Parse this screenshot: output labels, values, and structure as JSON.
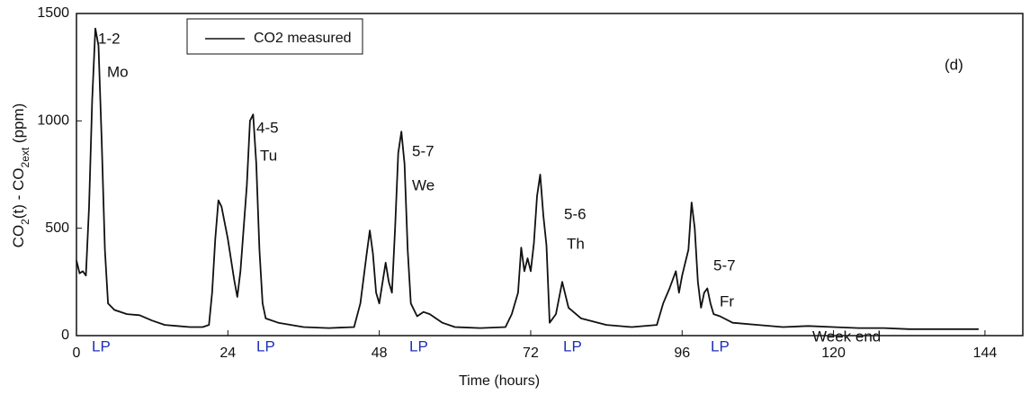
{
  "chart_data": {
    "type": "line",
    "xlabel": "Time (hours)",
    "ylabel": [
      "CO",
      "2",
      "(t) - CO",
      "2ext",
      " (ppm)"
    ],
    "xlim": [
      0,
      150
    ],
    "ylim": [
      0,
      1500
    ],
    "xticks": [
      0,
      24,
      48,
      72,
      96,
      120,
      144
    ],
    "yticks": [
      0,
      500,
      1000,
      1500
    ],
    "x": [
      0,
      0.5,
      1,
      1.5,
      2,
      2.5,
      3,
      3.5,
      4,
      4.5,
      5,
      6,
      8,
      10,
      12,
      14,
      16,
      18,
      20,
      21,
      21.5,
      22,
      22.5,
      23,
      24,
      25,
      25.5,
      26,
      27,
      27.5,
      28,
      28.5,
      29,
      29.5,
      30,
      32,
      36,
      40,
      44,
      45,
      46,
      46.5,
      47,
      47.5,
      48,
      49,
      49.5,
      50,
      50.5,
      51,
      51.5,
      52,
      52.5,
      53,
      54,
      55,
      56,
      58,
      60,
      64,
      68,
      69,
      70,
      70.5,
      71,
      71.5,
      72,
      72.5,
      73,
      73.5,
      74,
      74.5,
      75,
      76,
      77,
      78,
      80,
      84,
      88,
      92,
      93,
      94,
      95,
      95.5,
      96,
      97,
      97.5,
      98,
      98.5,
      99,
      99.5,
      100,
      100.5,
      101,
      102,
      104,
      108,
      112,
      116,
      120,
      124,
      128,
      132,
      136,
      140,
      143
    ],
    "series": [
      {
        "name": "CO2 measured",
        "color": "#111111",
        "values": [
          350,
          290,
          300,
          280,
          600,
          1100,
          1430,
          1350,
          900,
          400,
          150,
          120,
          100,
          95,
          70,
          50,
          45,
          40,
          40,
          50,
          200,
          450,
          630,
          600,
          450,
          260,
          180,
          300,
          700,
          1000,
          1030,
          800,
          400,
          150,
          80,
          60,
          40,
          35,
          40,
          150,
          380,
          490,
          380,
          200,
          150,
          340,
          250,
          200,
          500,
          850,
          950,
          800,
          400,
          150,
          90,
          110,
          100,
          60,
          40,
          35,
          40,
          100,
          200,
          410,
          300,
          360,
          300,
          430,
          650,
          750,
          560,
          420,
          60,
          100,
          250,
          130,
          80,
          50,
          40,
          50,
          150,
          220,
          300,
          200,
          280,
          400,
          620,
          500,
          250,
          130,
          200,
          220,
          150,
          100,
          90,
          60,
          50,
          40,
          45,
          40,
          35,
          35,
          30,
          30,
          30,
          30
        ]
      }
    ],
    "annotations": [
      "1-2",
      "Mo",
      "4-5",
      "Tu",
      "5-7",
      "We",
      "5-6",
      "Th",
      "5-7",
      "Fr",
      "Week end",
      "(d)",
      "LP",
      "LP",
      "LP",
      "LP",
      "LP"
    ]
  }
}
